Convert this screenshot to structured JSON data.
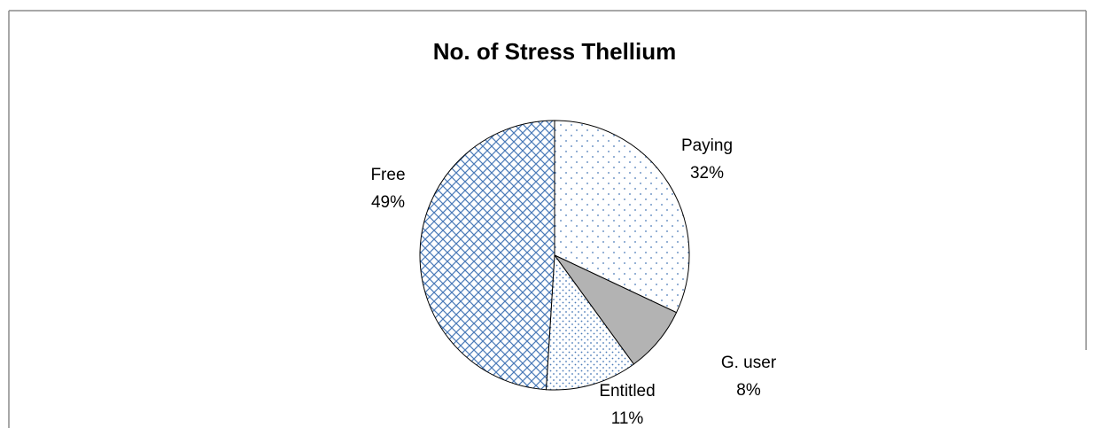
{
  "chart_data": {
    "type": "pie",
    "title": "No. of Stress Thellium",
    "categories": [
      "Paying",
      "G. user",
      "Entitled",
      "Free"
    ],
    "values": [
      32,
      8,
      11,
      49
    ],
    "value_labels": [
      "32%",
      "8%",
      "11%",
      "49%"
    ]
  }
}
